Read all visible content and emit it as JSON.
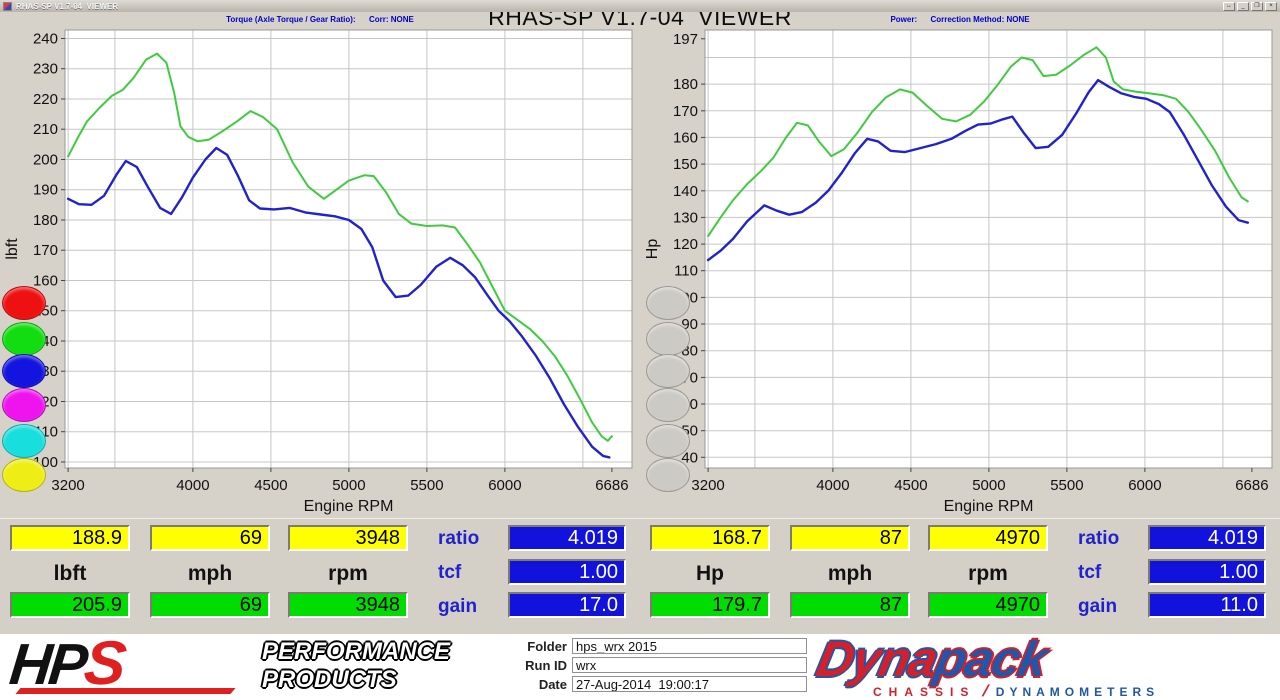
{
  "window": {
    "title": "RHAS-SP V1.7-04  VIEWER",
    "controls": [
      "resize",
      "minimize",
      "restore",
      "close"
    ],
    "control_glyphs": [
      "↔",
      "_",
      "❐",
      "×"
    ]
  },
  "main_title": "RHAS-SP V1.7-04  VIEWER",
  "chart_data": [
    {
      "type": "line",
      "header": "Torque (Axle Torque / Gear Ratio):",
      "corr": "Corr: NONE",
      "xlabel": "Engine RPM",
      "ylabel": "lbft",
      "xlim": [
        3180,
        6815
      ],
      "ylim": [
        98,
        242.8
      ],
      "xticks": [
        3200,
        4000,
        4500,
        5000,
        5500,
        6000,
        6686
      ],
      "xgrid": [
        3200,
        3500,
        4000,
        4500,
        5000,
        5500,
        6000,
        6500
      ],
      "yticks": [
        240,
        230,
        220,
        210,
        200,
        190,
        180,
        170,
        160,
        150,
        140,
        130,
        120,
        110,
        100
      ],
      "ygrid": [
        240,
        230,
        220,
        210,
        200,
        190,
        180,
        170,
        160,
        150,
        140,
        130,
        120,
        110,
        100
      ],
      "grid": true,
      "legend_position": "none",
      "series": [
        {
          "name": "torque-run-green",
          "color": "#3ecc3e",
          "width": 2,
          "points": [
            [
              3200,
              201
            ],
            [
              3260,
              207
            ],
            [
              3320,
              212.5
            ],
            [
              3400,
              217
            ],
            [
              3480,
              221
            ],
            [
              3550,
              223
            ],
            [
              3620,
              227
            ],
            [
              3700,
              233
            ],
            [
              3770,
              235
            ],
            [
              3830,
              232
            ],
            [
              3880,
              222
            ],
            [
              3920,
              211
            ],
            [
              3970,
              207.5
            ],
            [
              4030,
              206
            ],
            [
              4100,
              206.5
            ],
            [
              4180,
              209
            ],
            [
              4280,
              212.5
            ],
            [
              4370,
              216
            ],
            [
              4450,
              214
            ],
            [
              4540,
              210
            ],
            [
              4640,
              199
            ],
            [
              4740,
              191
            ],
            [
              4840,
              187
            ],
            [
              4920,
              190
            ],
            [
              5000,
              193
            ],
            [
              5100,
              194.8
            ],
            [
              5160,
              194.5
            ],
            [
              5240,
              189
            ],
            [
              5320,
              182
            ],
            [
              5400,
              178.8
            ],
            [
              5500,
              178
            ],
            [
              5600,
              178.2
            ],
            [
              5680,
              177.5
            ],
            [
              5760,
              172
            ],
            [
              5840,
              166
            ],
            [
              5920,
              158
            ],
            [
              6000,
              150
            ],
            [
              6080,
              147
            ],
            [
              6160,
              144
            ],
            [
              6240,
              140
            ],
            [
              6320,
              135
            ],
            [
              6400,
              128.5
            ],
            [
              6480,
              121
            ],
            [
              6560,
              113
            ],
            [
              6620,
              108.5
            ],
            [
              6660,
              107
            ],
            [
              6686,
              108.5
            ]
          ]
        },
        {
          "name": "torque-run-blue",
          "color": "#2222cc",
          "width": 2.4,
          "points": [
            [
              3200,
              187
            ],
            [
              3270,
              185.2
            ],
            [
              3350,
              185
            ],
            [
              3430,
              188
            ],
            [
              3510,
              195
            ],
            [
              3570,
              199.5
            ],
            [
              3640,
              197.5
            ],
            [
              3710,
              191
            ],
            [
              3790,
              184
            ],
            [
              3860,
              182
            ],
            [
              3930,
              187.5
            ],
            [
              4000,
              194
            ],
            [
              4080,
              200
            ],
            [
              4150,
              203.8
            ],
            [
              4220,
              201.5
            ],
            [
              4290,
              194.5
            ],
            [
              4360,
              186.5
            ],
            [
              4430,
              183.8
            ],
            [
              4520,
              183.5
            ],
            [
              4620,
              184
            ],
            [
              4720,
              182.5
            ],
            [
              4820,
              181.8
            ],
            [
              4910,
              181.2
            ],
            [
              5000,
              180
            ],
            [
              5080,
              177
            ],
            [
              5150,
              171
            ],
            [
              5220,
              160
            ],
            [
              5300,
              154.5
            ],
            [
              5380,
              155
            ],
            [
              5460,
              158.5
            ],
            [
              5560,
              164.5
            ],
            [
              5650,
              167.5
            ],
            [
              5730,
              165
            ],
            [
              5810,
              161
            ],
            [
              5890,
              155
            ],
            [
              5960,
              150
            ],
            [
              6030,
              146.5
            ],
            [
              6110,
              141.5
            ],
            [
              6200,
              135
            ],
            [
              6290,
              127.5
            ],
            [
              6380,
              119
            ],
            [
              6470,
              111.5
            ],
            [
              6560,
              105
            ],
            [
              6630,
              102
            ],
            [
              6670,
              101.5
            ]
          ]
        }
      ]
    },
    {
      "type": "line",
      "header": "Power:",
      "corr": "Correction Method: NONE",
      "xlabel": "Engine RPM",
      "ylabel": "Hp",
      "xlim": [
        3180,
        6815
      ],
      "ylim": [
        36,
        200.3
      ],
      "xticks": [
        3200,
        4000,
        4500,
        5000,
        5500,
        6000,
        6686
      ],
      "xgrid": [
        3200,
        3500,
        4000,
        4500,
        5000,
        5500,
        6000,
        6500
      ],
      "yticks": [
        197,
        180,
        170,
        160,
        150,
        140,
        130,
        120,
        110,
        100,
        90,
        80,
        70,
        60,
        50,
        40
      ],
      "ygrid": [
        190,
        180,
        170,
        160,
        150,
        140,
        130,
        120,
        110,
        100,
        90,
        80,
        70,
        60,
        50,
        40
      ],
      "grid": true,
      "legend_position": "none",
      "series": [
        {
          "name": "power-run-green",
          "color": "#3ecc3e",
          "width": 2,
          "points": [
            [
              3200,
              123
            ],
            [
              3280,
              130
            ],
            [
              3360,
              136.5
            ],
            [
              3450,
              142.5
            ],
            [
              3540,
              147.5
            ],
            [
              3620,
              152.5
            ],
            [
              3700,
              160
            ],
            [
              3770,
              165.5
            ],
            [
              3840,
              164.5
            ],
            [
              3910,
              158.5
            ],
            [
              3990,
              153
            ],
            [
              4070,
              155.5
            ],
            [
              4160,
              162
            ],
            [
              4250,
              169.5
            ],
            [
              4340,
              175
            ],
            [
              4430,
              178
            ],
            [
              4510,
              176.8
            ],
            [
              4600,
              172
            ],
            [
              4700,
              167
            ],
            [
              4790,
              166
            ],
            [
              4880,
              168.5
            ],
            [
              4970,
              173.5
            ],
            [
              5060,
              180
            ],
            [
              5140,
              186.5
            ],
            [
              5210,
              190
            ],
            [
              5280,
              189
            ],
            [
              5350,
              183
            ],
            [
              5430,
              183.5
            ],
            [
              5520,
              187
            ],
            [
              5610,
              191
            ],
            [
              5690,
              193.8
            ],
            [
              5750,
              190
            ],
            [
              5800,
              181
            ],
            [
              5860,
              178
            ],
            [
              5940,
              177.2
            ],
            [
              6030,
              176.5
            ],
            [
              6120,
              175.8
            ],
            [
              6200,
              174.5
            ],
            [
              6280,
              169.5
            ],
            [
              6360,
              163
            ],
            [
              6450,
              155
            ],
            [
              6540,
              145
            ],
            [
              6620,
              137.5
            ],
            [
              6660,
              136
            ]
          ]
        },
        {
          "name": "power-run-blue",
          "color": "#2222cc",
          "width": 2.4,
          "points": [
            [
              3200,
              114
            ],
            [
              3280,
              117.5
            ],
            [
              3360,
              122
            ],
            [
              3450,
              128.5
            ],
            [
              3560,
              134.5
            ],
            [
              3640,
              132.5
            ],
            [
              3720,
              131
            ],
            [
              3800,
              132
            ],
            [
              3890,
              135.5
            ],
            [
              3970,
              140
            ],
            [
              4060,
              147
            ],
            [
              4140,
              154
            ],
            [
              4220,
              159.5
            ],
            [
              4290,
              158.5
            ],
            [
              4370,
              155
            ],
            [
              4460,
              154.5
            ],
            [
              4560,
              156
            ],
            [
              4660,
              157.5
            ],
            [
              4760,
              159.5
            ],
            [
              4850,
              162.5
            ],
            [
              4930,
              164.8
            ],
            [
              5010,
              165.2
            ],
            [
              5090,
              166.8
            ],
            [
              5150,
              167.8
            ],
            [
              5220,
              162
            ],
            [
              5300,
              156
            ],
            [
              5380,
              156.5
            ],
            [
              5470,
              161
            ],
            [
              5560,
              169
            ],
            [
              5640,
              177
            ],
            [
              5700,
              181.5
            ],
            [
              5770,
              179
            ],
            [
              5850,
              176.5
            ],
            [
              5930,
              175.2
            ],
            [
              6010,
              174.5
            ],
            [
              6090,
              172.5
            ],
            [
              6160,
              169.5
            ],
            [
              6250,
              161
            ],
            [
              6340,
              151.5
            ],
            [
              6430,
              142
            ],
            [
              6520,
              134
            ],
            [
              6600,
              129
            ],
            [
              6660,
              128
            ]
          ]
        }
      ]
    }
  ],
  "legend_buttons": {
    "colors": [
      {
        "name": "red",
        "hex": "#ee1111"
      },
      {
        "name": "green",
        "hex": "#11dd11"
      },
      {
        "name": "blue",
        "hex": "#1414e0"
      },
      {
        "name": "magenta",
        "hex": "#ee14ee"
      },
      {
        "name": "cyan",
        "hex": "#18dede"
      },
      {
        "name": "yellow",
        "hex": "#eeee14"
      }
    ],
    "disabled_color": "#cccac4",
    "disabled_count": 6
  },
  "panels": [
    {
      "yellow": [
        "188.9",
        "69",
        "3948"
      ],
      "units": [
        "lbft",
        "mph",
        "rpm"
      ],
      "green": [
        "205.9",
        "69",
        "3948"
      ],
      "stats": [
        {
          "label": "ratio",
          "value": "4.019"
        },
        {
          "label": "tcf",
          "value": "1.00"
        },
        {
          "label": "gain",
          "value": "17.0"
        }
      ]
    },
    {
      "yellow": [
        "168.7",
        "87",
        "4970"
      ],
      "units": [
        "Hp",
        "mph",
        "rpm"
      ],
      "green": [
        "179.7",
        "87",
        "4970"
      ],
      "stats": [
        {
          "label": "ratio",
          "value": "4.019"
        },
        {
          "label": "tcf",
          "value": "1.00"
        },
        {
          "label": "gain",
          "value": "11.0"
        }
      ]
    }
  ],
  "footer": {
    "hps": {
      "hp": "HP",
      "s": "S",
      "line1": "PERFORMANCE",
      "line2": "PRODUCTS"
    },
    "fields": [
      {
        "label": "Folder",
        "value": "hps_wrx 2015"
      },
      {
        "label": "Run ID",
        "value": "wrx"
      },
      {
        "label": "Date",
        "value": "27-Aug-2014  19:00:17"
      }
    ],
    "dynapack": {
      "name_red": "Dyna",
      "name_blue": "pack",
      "sub_left": "CHASSIS",
      "sub_right": "DYNAMOMETERS"
    }
  },
  "colors": {
    "app_background": "#d6d2ca",
    "panel_background": "#d4d0c8",
    "yellow_box": "#ffff00",
    "green_box": "#00dd00",
    "blue_box": "#1212dd",
    "blue_label": "#2222cc",
    "curve_green": "#3ecc3e",
    "curve_blue": "#2222cc",
    "hps_red": "#e02020",
    "dynapack_red": "#d42028",
    "dynapack_blue": "#2156a8"
  }
}
